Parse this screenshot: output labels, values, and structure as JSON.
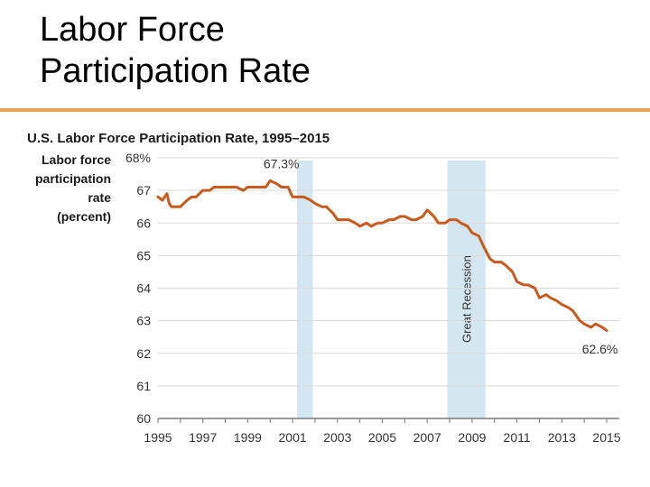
{
  "slide": {
    "title_line1": "Labor Force",
    "title_line2": "Participation Rate"
  },
  "colors": {
    "accent_rule": "#e8a15a",
    "line": "#c95a1f",
    "band": "#d4e7f1",
    "grid": "#d9d9d9",
    "axis": "#7a7a7a"
  },
  "chart_data": {
    "type": "line",
    "title": "U.S. Labor Force Participation Rate, 1995–2015",
    "ylabel_lines": [
      "Labor force",
      "participation",
      "rate",
      "(percent)"
    ],
    "xlim": [
      1995,
      2015.5
    ],
    "ylim": [
      60,
      68
    ],
    "x_ticks": [
      "1995",
      "1997",
      "1999",
      "2001",
      "2003",
      "2005",
      "2007",
      "2009",
      "2011",
      "2013",
      "2015"
    ],
    "y_ticks": [
      "68%",
      "67",
      "66",
      "65",
      "64",
      "63",
      "62",
      "61",
      "60"
    ],
    "grid": true,
    "shaded_periods": [
      {
        "start": 2001.2,
        "end": 2001.9,
        "label": ""
      },
      {
        "start": 2007.9,
        "end": 2009.6,
        "label": "Great Recession"
      }
    ],
    "annotations": [
      {
        "text": "67.3%",
        "x": 2000.5,
        "y": 67.3
      },
      {
        "text": "62.6%",
        "x": 2014.7,
        "y": 62.6
      }
    ],
    "series": [
      {
        "x": [
          1995.0,
          1995.2,
          1995.4,
          1995.5,
          1995.6,
          1995.8,
          1996.0,
          1996.3,
          1996.5,
          1996.7,
          1997.0,
          1997.3,
          1997.5,
          1997.8,
          1998.0,
          1998.3,
          1998.5,
          1998.8,
          1999.0,
          1999.3,
          1999.5,
          1999.8,
          2000.0,
          2000.3,
          2000.5,
          2000.8,
          2001.0,
          2001.3,
          2001.5,
          2001.8,
          2002.0,
          2002.3,
          2002.5,
          2002.8,
          2003.0,
          2003.3,
          2003.5,
          2003.8,
          2004.0,
          2004.3,
          2004.5,
          2004.8,
          2005.0,
          2005.3,
          2005.5,
          2005.8,
          2006.0,
          2006.3,
          2006.5,
          2006.8,
          2007.0,
          2007.3,
          2007.5,
          2007.8,
          2008.0,
          2008.3,
          2008.5,
          2008.8,
          2009.0,
          2009.3,
          2009.5,
          2009.8,
          2010.0,
          2010.3,
          2010.5,
          2010.8,
          2011.0,
          2011.3,
          2011.5,
          2011.8,
          2012.0,
          2012.3,
          2012.5,
          2012.8,
          2013.0,
          2013.3,
          2013.5,
          2013.8,
          2014.0,
          2014.3,
          2014.5,
          2014.8,
          2015.0
        ],
        "values": [
          66.8,
          66.7,
          66.9,
          66.6,
          66.5,
          66.5,
          66.5,
          66.7,
          66.8,
          66.8,
          67.0,
          67.0,
          67.1,
          67.1,
          67.1,
          67.1,
          67.1,
          67.0,
          67.1,
          67.1,
          67.1,
          67.1,
          67.3,
          67.2,
          67.1,
          67.1,
          66.8,
          66.8,
          66.8,
          66.7,
          66.6,
          66.5,
          66.5,
          66.3,
          66.1,
          66.1,
          66.1,
          66.0,
          65.9,
          66.0,
          65.9,
          66.0,
          66.0,
          66.1,
          66.1,
          66.2,
          66.2,
          66.1,
          66.1,
          66.2,
          66.4,
          66.2,
          66.0,
          66.0,
          66.1,
          66.1,
          66.0,
          65.9,
          65.7,
          65.6,
          65.3,
          64.9,
          64.8,
          64.8,
          64.7,
          64.5,
          64.2,
          64.1,
          64.1,
          64.0,
          63.7,
          63.8,
          63.7,
          63.6,
          63.5,
          63.4,
          63.3,
          63.0,
          62.9,
          62.8,
          62.9,
          62.8,
          62.7
        ]
      }
    ]
  }
}
